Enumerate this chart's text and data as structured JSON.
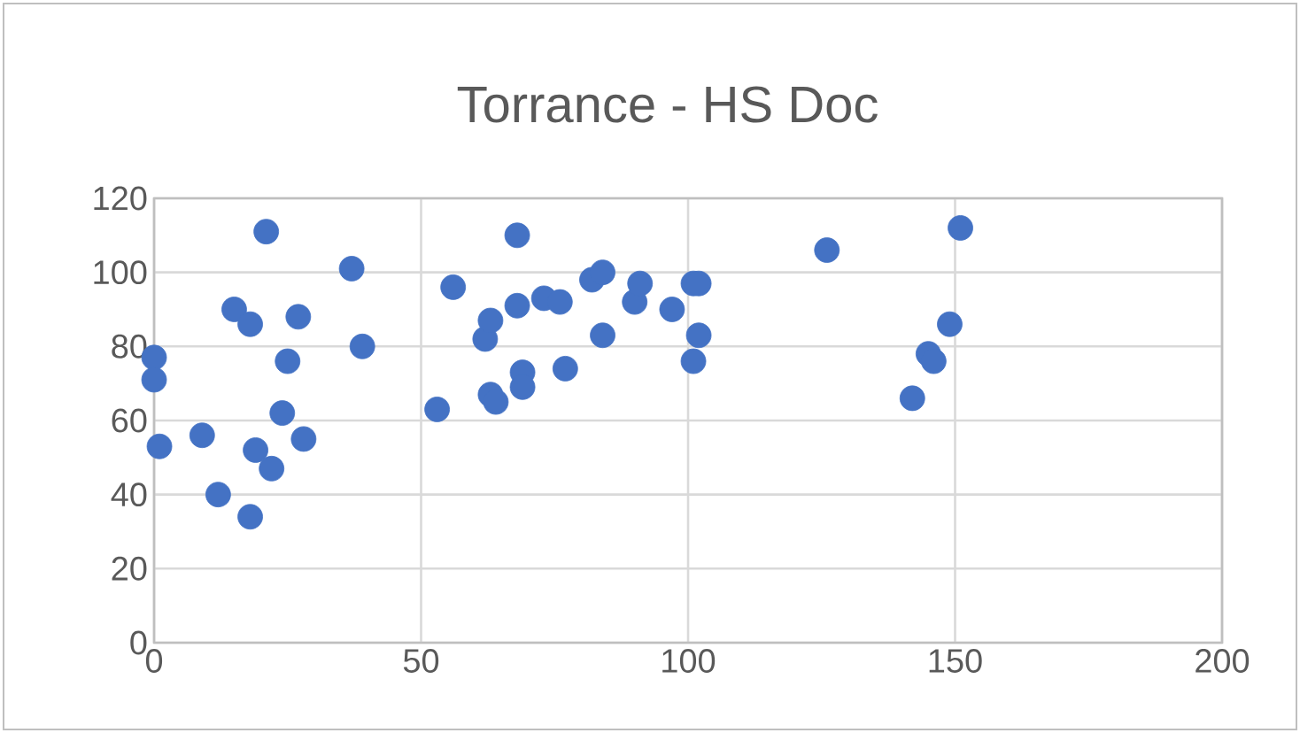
{
  "chart_data": {
    "type": "scatter",
    "title": "Torrance - HS Doc",
    "x": [
      0,
      0,
      1,
      9,
      12,
      15,
      18,
      18,
      19,
      21,
      22,
      24,
      25,
      27,
      28,
      37,
      39,
      53,
      56,
      62,
      63,
      63,
      64,
      68,
      68,
      69,
      69,
      73,
      76,
      77,
      82,
      84,
      84,
      90,
      91,
      97,
      101,
      101,
      102,
      102,
      126,
      142,
      145,
      146,
      149,
      151
    ],
    "values": [
      77,
      71,
      53,
      56,
      40,
      90,
      86,
      34,
      52,
      111,
      47,
      62,
      76,
      88,
      55,
      101,
      80,
      63,
      96,
      82,
      87,
      67,
      65,
      110,
      91,
      73,
      69,
      93,
      92,
      74,
      98,
      100,
      83,
      92,
      97,
      90,
      97,
      76,
      97,
      83,
      106,
      66,
      78,
      76,
      86,
      112
    ],
    "color": "#4472c4",
    "xlim": [
      0,
      200
    ],
    "xticks": [
      0,
      50,
      100,
      150,
      200
    ],
    "ylim": [
      0,
      120
    ],
    "yticks": [
      0,
      20,
      40,
      60,
      80,
      100,
      120
    ],
    "grid": true,
    "legend": false
  }
}
